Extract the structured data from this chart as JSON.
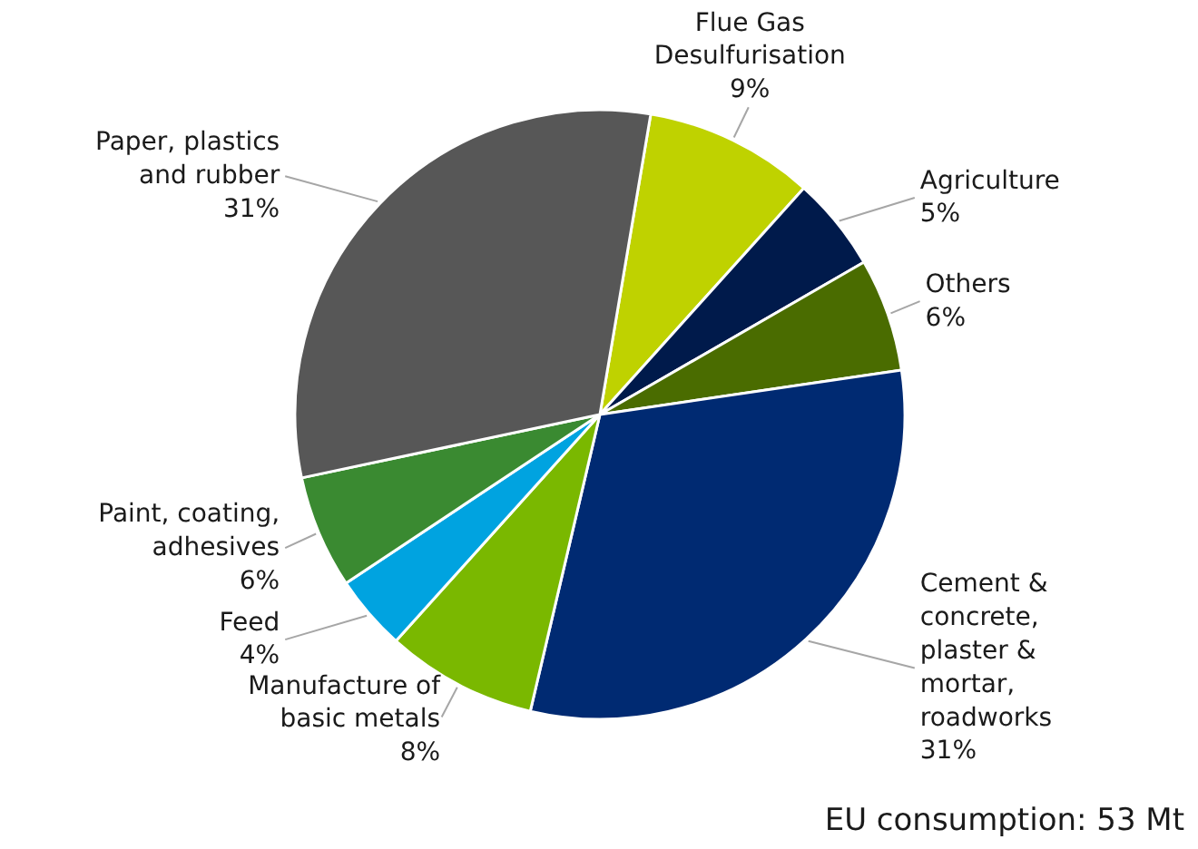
{
  "chart_data": {
    "type": "pie",
    "categories": [
      "Flue Gas\nDesulfurisation",
      "Agriculture",
      "Others",
      "Cement &\nconcrete,\nplaster &\nmortar,\nroadworks",
      "Manufacture of\nbasic metals",
      "Feed",
      "Paint, coating,\nadhesives",
      "Paper, plastics\nand rubber"
    ],
    "values": [
      9,
      5,
      6,
      31,
      8,
      4,
      6,
      31
    ],
    "value_labels": [
      "9%",
      "5%",
      "6%",
      "31%",
      "8%",
      "4%",
      "6%",
      "31%"
    ],
    "colors": [
      "#bfd200",
      "#001a4b",
      "#4a6c00",
      "#002a72",
      "#7ab800",
      "#00a3e0",
      "#3a8a31",
      "#575757"
    ],
    "annotations": [
      "EU consumption: 53 Mt"
    ]
  }
}
